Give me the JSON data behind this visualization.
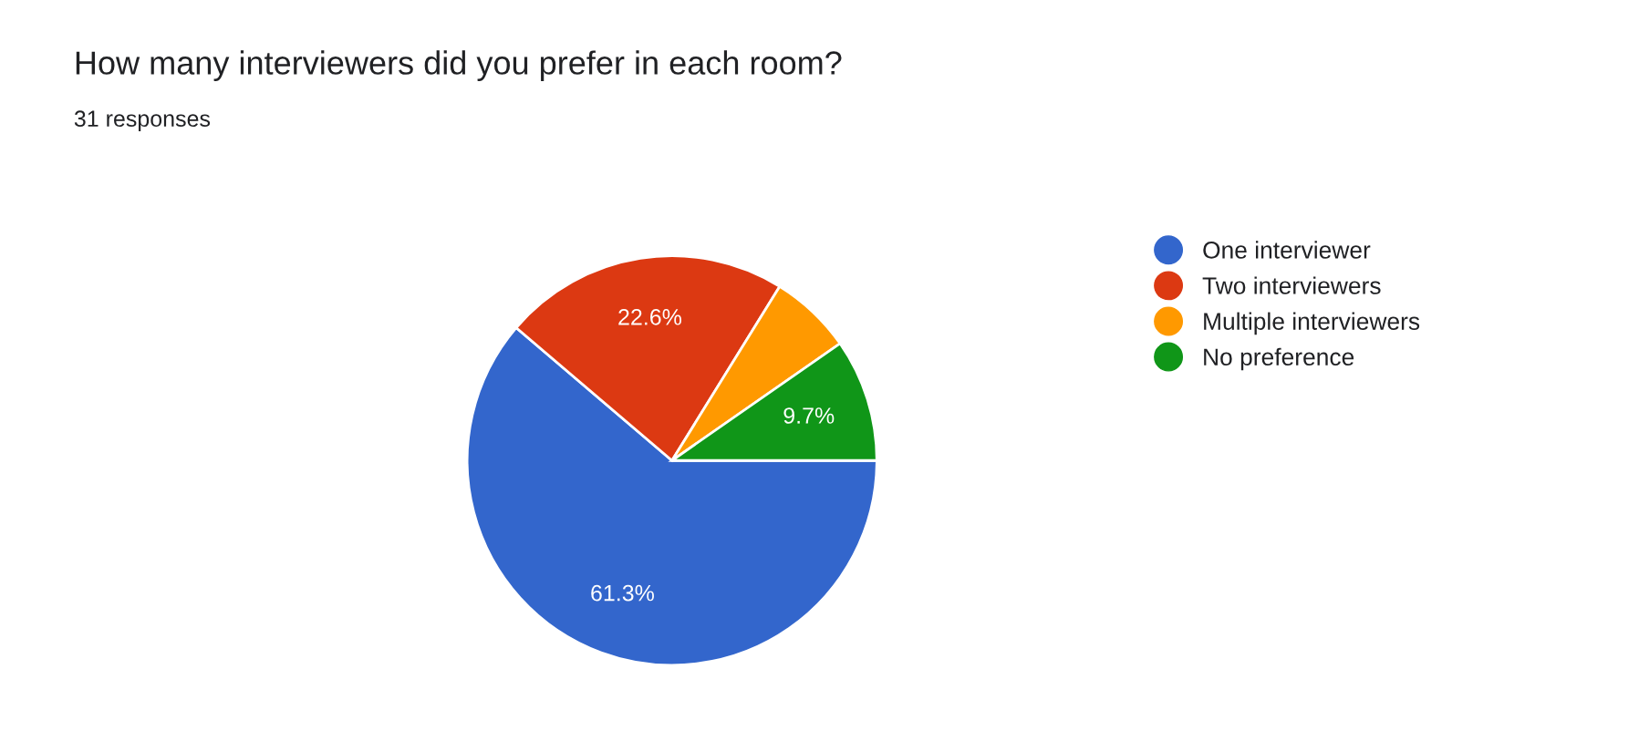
{
  "chart_data": {
    "type": "pie",
    "title": "How many interviewers did you prefer in each room?",
    "subtitle": "31 responses",
    "categories": [
      "One interviewer",
      "Two interviewers",
      "Multiple interviewers",
      "No preference"
    ],
    "values": [
      61.3,
      22.6,
      6.5,
      9.7
    ],
    "colors": [
      "#3366cc",
      "#dc3912",
      "#ff9900",
      "#109618"
    ],
    "value_labels": [
      "61.3%",
      "22.6%",
      null,
      "9.7%"
    ],
    "legend": "right"
  }
}
